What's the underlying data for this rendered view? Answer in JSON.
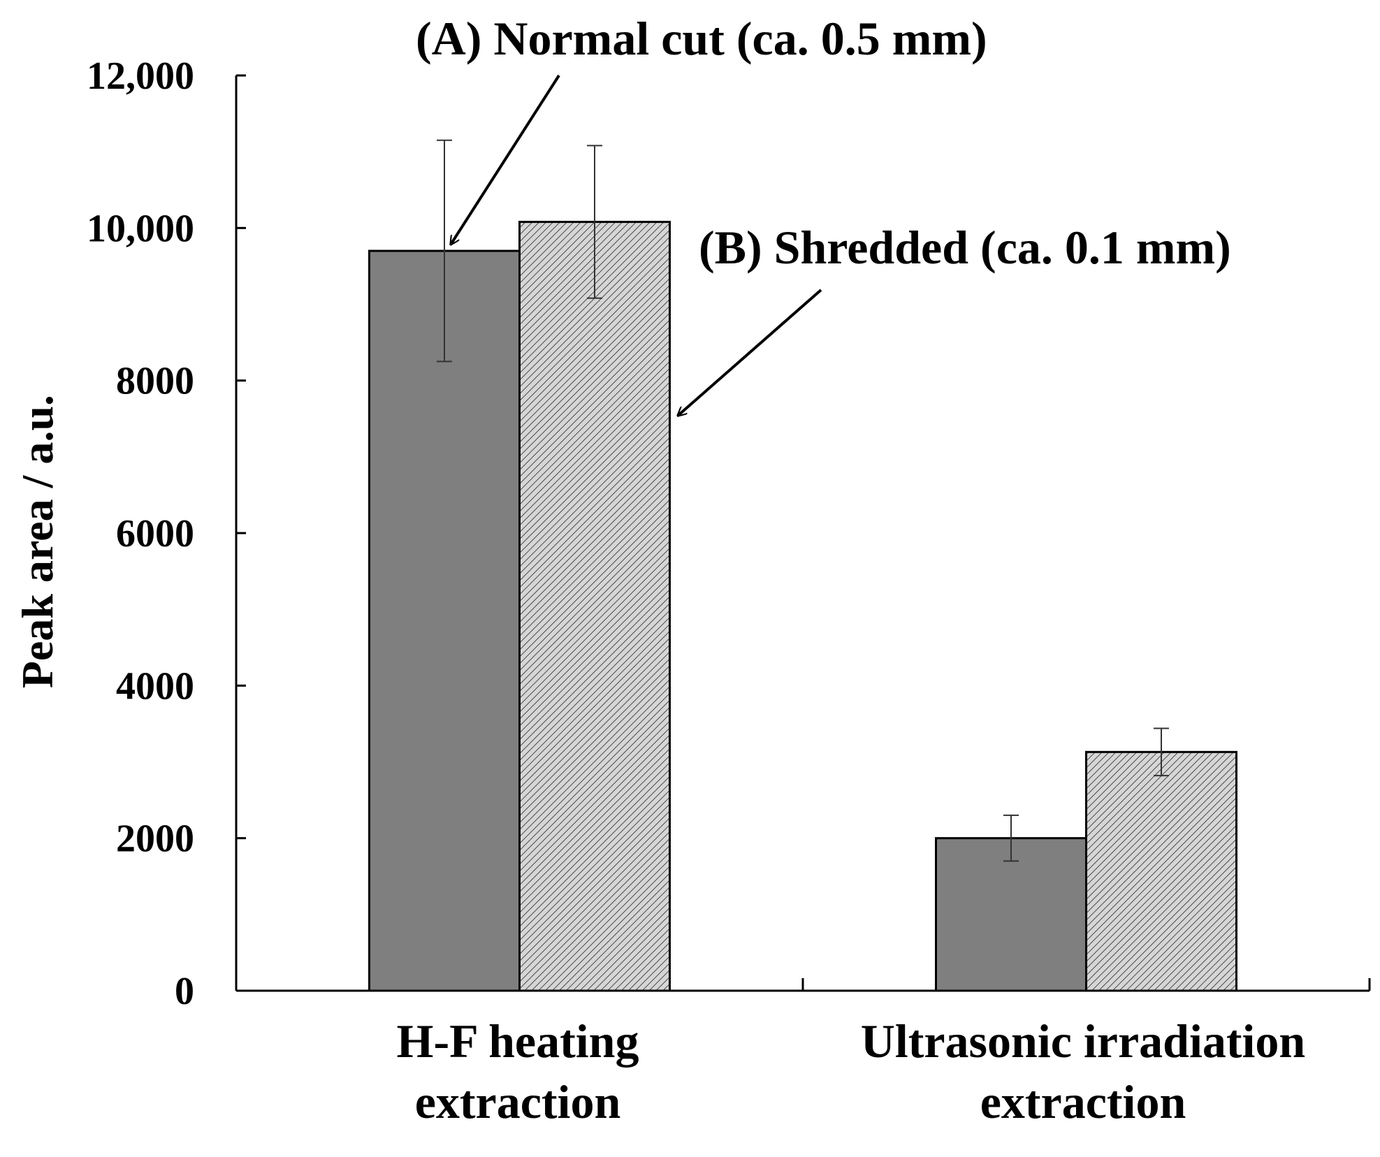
{
  "chart_data": {
    "type": "bar",
    "title": "",
    "xlabel": "",
    "ylabel": "Peak area / a.u.",
    "ylim": [
      0,
      12000
    ],
    "yticks": [
      0,
      2000,
      4000,
      6000,
      8000,
      10000,
      12000
    ],
    "ytick_labels": [
      "0",
      "2000",
      "4000",
      "6000",
      "8000",
      "10,000",
      "12,000"
    ],
    "grid": false,
    "categories": [
      {
        "line1": "H-F heating",
        "line2": "extraction"
      },
      {
        "line1": "Ultrasonic irradiation",
        "line2": "extraction"
      }
    ],
    "series": [
      {
        "name": "(A) Normal cut (ca. 0.5 mm)",
        "fill": "#7f7f7f",
        "pattern": "solid",
        "values": [
          9700,
          2000
        ],
        "errors": [
          1450,
          300
        ]
      },
      {
        "name": "(B) Shredded (ca. 0.1 mm)",
        "fill": "#d0d0d0",
        "pattern": "diagonal-hatch",
        "values": [
          10080,
          3130
        ],
        "errors": [
          1000,
          310
        ]
      }
    ],
    "annotations": [
      {
        "text": "(A) Normal cut (ca. 0.5 mm)",
        "points_to": "H-F heating normal cut bar"
      },
      {
        "text": "(B) Shredded (ca. 0.1 mm)",
        "points_to": "H-F heating shredded bar"
      }
    ],
    "colors": {
      "axis": "#000000",
      "bar_edge": "#000000",
      "hatch_line": "#555555"
    }
  }
}
